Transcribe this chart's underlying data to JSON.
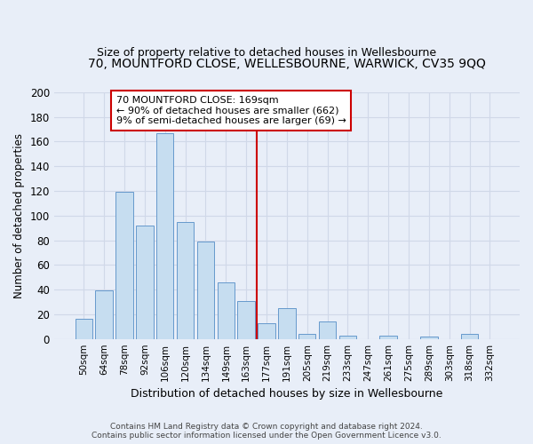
{
  "title": "70, MOUNTFORD CLOSE, WELLESBOURNE, WARWICK, CV35 9QQ",
  "subtitle": "Size of property relative to detached houses in Wellesbourne",
  "xlabel": "Distribution of detached houses by size in Wellesbourne",
  "ylabel": "Number of detached properties",
  "bar_labels": [
    "50sqm",
    "64sqm",
    "78sqm",
    "92sqm",
    "106sqm",
    "120sqm",
    "134sqm",
    "149sqm",
    "163sqm",
    "177sqm",
    "191sqm",
    "205sqm",
    "219sqm",
    "233sqm",
    "247sqm",
    "261sqm",
    "275sqm",
    "289sqm",
    "303sqm",
    "318sqm",
    "332sqm"
  ],
  "bar_values": [
    16,
    39,
    119,
    92,
    167,
    95,
    79,
    46,
    31,
    13,
    25,
    4,
    14,
    3,
    0,
    3,
    0,
    2,
    0,
    4,
    0
  ],
  "bar_color": "#c6ddf0",
  "bar_edge_color": "#6699cc",
  "vline_color": "#cc0000",
  "annotation_text": "70 MOUNTFORD CLOSE: 169sqm\n← 90% of detached houses are smaller (662)\n9% of semi-detached houses are larger (69) →",
  "annotation_box_color": "#ffffff",
  "annotation_box_edge": "#cc0000",
  "footer_line1": "Contains HM Land Registry data © Crown copyright and database right 2024.",
  "footer_line2": "Contains public sector information licensed under the Open Government Licence v3.0.",
  "ylim": [
    0,
    200
  ],
  "bg_color": "#e8eef8",
  "plot_bg_color": "#e8eef8",
  "grid_color": "#d0d8e8",
  "title_fontsize": 10,
  "subtitle_fontsize": 9
}
